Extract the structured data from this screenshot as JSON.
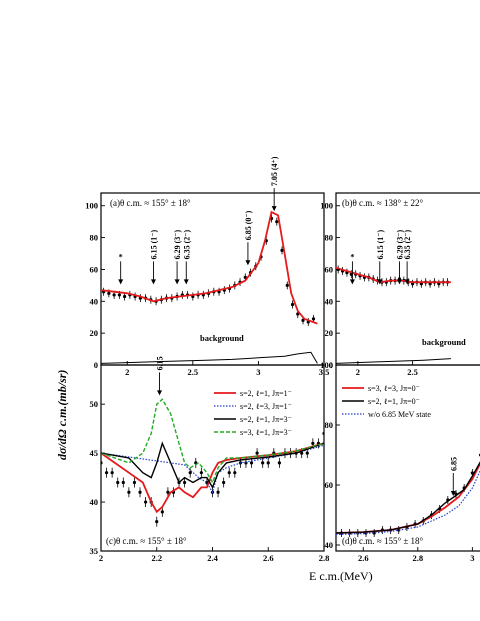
{
  "y_axis_label": "dσ/dΩ c.m.(mb/sr)",
  "x_axis_label": "E c.m.(MeV)",
  "chart_data": [
    {
      "id": "a",
      "type": "line",
      "panel_label": "(a)θ c.m. ≈ 155° ± 18°",
      "xlim": [
        1.8,
        3.5
      ],
      "ylim": [
        0,
        108
      ],
      "xticks": [
        2.0,
        2.5,
        3.0,
        3.5
      ],
      "yticks": [
        0,
        20,
        40,
        60,
        80,
        100
      ],
      "annotations": [
        {
          "label": "*",
          "x": 1.95
        },
        {
          "label": "6.15 (1⁻)",
          "x": 2.2
        },
        {
          "label": "6.29 (3⁻)",
          "x": 2.38
        },
        {
          "label": "6.35 (2⁻)",
          "x": 2.45
        },
        {
          "label": "6.85 (0⁻)",
          "x": 2.92
        },
        {
          "label": "7.05 (4⁺)",
          "x": 3.12
        }
      ],
      "background_label": "background",
      "series": [
        {
          "name": "data",
          "color": "#000000",
          "x": [
            1.82,
            1.86,
            1.9,
            1.94,
            1.98,
            2.02,
            2.06,
            2.1,
            2.14,
            2.18,
            2.22,
            2.26,
            2.3,
            2.34,
            2.38,
            2.42,
            2.46,
            2.5,
            2.54,
            2.58,
            2.62,
            2.66,
            2.7,
            2.74,
            2.78,
            2.82,
            2.86,
            2.9,
            2.94,
            2.98,
            3.02,
            3.06,
            3.1,
            3.14,
            3.18,
            3.22,
            3.26,
            3.3,
            3.34,
            3.38,
            3.42
          ],
          "y": [
            46,
            45,
            44,
            44,
            43,
            44,
            43,
            42,
            42,
            41,
            40,
            41,
            42,
            42,
            43,
            44,
            44,
            43,
            44,
            44,
            45,
            46,
            46,
            47,
            48,
            50,
            52,
            55,
            58,
            62,
            68,
            78,
            92,
            90,
            72,
            50,
            38,
            32,
            28,
            27,
            29
          ]
        },
        {
          "name": "fit",
          "color": "#e41a1c",
          "x": [
            1.8,
            1.9,
            2.0,
            2.1,
            2.2,
            2.3,
            2.4,
            2.5,
            2.6,
            2.7,
            2.8,
            2.9,
            3.0,
            3.05,
            3.1,
            3.15,
            3.2,
            3.25,
            3.3,
            3.35,
            3.45
          ],
          "y": [
            47,
            46,
            45,
            43,
            40,
            42,
            43,
            44,
            45,
            47,
            49,
            53,
            64,
            78,
            96,
            94,
            70,
            45,
            34,
            29,
            26
          ]
        },
        {
          "name": "background",
          "color": "#000000",
          "x": [
            1.8,
            2.0,
            2.2,
            2.4,
            2.6,
            2.8,
            2.9,
            3.0,
            3.1,
            3.2,
            3.3,
            3.4,
            3.45
          ],
          "y": [
            1,
            1.5,
            2,
            2.5,
            3,
            3.5,
            4,
            4.5,
            5,
            5.5,
            7,
            8,
            1
          ]
        }
      ]
    },
    {
      "id": "b",
      "type": "line",
      "panel_label": "(b)θ c.m. ≈ 138° ± 22°",
      "xlim": [
        1.8,
        3.5
      ],
      "ylim": [
        0,
        108
      ],
      "xticks": [
        2.0,
        2.5
      ],
      "yticks": [
        0,
        20,
        40,
        60,
        80,
        100
      ],
      "annotations": [
        {
          "label": "*",
          "x": 1.95
        },
        {
          "label": "6.15 (1⁻)",
          "x": 2.2
        },
        {
          "label": "6.29 (3⁻)",
          "x": 2.38
        },
        {
          "label": "6.35 (2⁻)",
          "x": 2.45
        }
      ],
      "background_label": "background",
      "series": [
        {
          "name": "data",
          "color": "#000000",
          "x": [
            1.82,
            1.86,
            1.9,
            1.94,
            1.98,
            2.02,
            2.06,
            2.1,
            2.14,
            2.18,
            2.22,
            2.26,
            2.3,
            2.34,
            2.38,
            2.42,
            2.46,
            2.5,
            2.54,
            2.58,
            2.62,
            2.66,
            2.7,
            2.74,
            2.78,
            2.82
          ],
          "y": [
            60,
            59,
            58,
            57,
            57,
            56,
            55,
            55,
            54,
            53,
            52,
            52,
            53,
            53,
            54,
            53,
            52,
            51,
            52,
            51,
            52,
            51,
            52,
            51,
            52,
            52
          ]
        },
        {
          "name": "fit",
          "color": "#e41a1c",
          "x": [
            1.8,
            1.9,
            2.0,
            2.1,
            2.2,
            2.3,
            2.4,
            2.5,
            2.6,
            2.7,
            2.85
          ],
          "y": [
            61,
            59,
            57,
            55,
            52,
            53,
            53,
            52,
            52,
            52,
            52
          ]
        },
        {
          "name": "background",
          "color": "#000000",
          "x": [
            1.8,
            2.2,
            2.6,
            2.85
          ],
          "y": [
            1,
            2,
            3,
            4
          ]
        }
      ]
    },
    {
      "id": "c",
      "type": "line",
      "panel_label": "(c)θ c.m. ≈ 155° ± 18°",
      "xlim": [
        2.0,
        2.8
      ],
      "ylim": [
        35,
        54
      ],
      "xticks": [
        2.0,
        2.2,
        2.4,
        2.6,
        2.8
      ],
      "yticks": [
        35,
        40,
        45,
        50
      ],
      "annotations": [
        {
          "label": "6.15",
          "x": 2.21
        }
      ],
      "series": [
        {
          "name": "data",
          "color": "#000000",
          "x": [
            2.0,
            2.02,
            2.04,
            2.06,
            2.08,
            2.1,
            2.12,
            2.14,
            2.16,
            2.18,
            2.2,
            2.22,
            2.24,
            2.26,
            2.28,
            2.3,
            2.32,
            2.34,
            2.36,
            2.38,
            2.4,
            2.42,
            2.44,
            2.46,
            2.48,
            2.5,
            2.52,
            2.54,
            2.56,
            2.58,
            2.6,
            2.62,
            2.64,
            2.66,
            2.68,
            2.7,
            2.72,
            2.74,
            2.76,
            2.78,
            2.8
          ],
          "y": [
            44,
            43,
            43,
            42,
            42,
            41,
            42,
            41,
            40,
            40,
            38,
            39,
            41,
            41,
            42,
            42,
            43,
            44,
            43,
            42,
            41,
            41,
            42,
            43,
            43,
            44,
            44,
            44,
            45,
            44,
            44,
            45,
            44,
            45,
            45,
            45,
            45,
            45,
            46,
            46,
            47
          ]
        },
        {
          "name": "s=2, ℓ=1, Jπ=1⁻",
          "color": "#e41a1c",
          "x": [
            2.0,
            2.05,
            2.1,
            2.15,
            2.18,
            2.2,
            2.22,
            2.25,
            2.28,
            2.3,
            2.33,
            2.36,
            2.38,
            2.4,
            2.42,
            2.45,
            2.5,
            2.6,
            2.7,
            2.8
          ],
          "y": [
            45,
            44,
            43,
            42,
            40,
            39,
            39.5,
            41,
            41.5,
            41,
            40.5,
            41.5,
            41.5,
            43,
            44,
            44.3,
            44.5,
            44.8,
            45.2,
            46
          ]
        },
        {
          "name": "s=2, ℓ=3, Jπ=1⁻",
          "color": "#1f3fd0",
          "x": [
            2.0,
            2.1,
            2.2,
            2.3,
            2.35,
            2.38,
            2.4,
            2.42,
            2.45,
            2.5,
            2.6,
            2.7,
            2.8
          ],
          "y": [
            45,
            44.6,
            44.2,
            43.8,
            42.5,
            42,
            41,
            43,
            43.5,
            44,
            44.5,
            45,
            45.8
          ]
        },
        {
          "name": "s=2, ℓ=1, Jπ=3⁻",
          "color": "#000000",
          "x": [
            2.0,
            2.1,
            2.15,
            2.18,
            2.2,
            2.22,
            2.25,
            2.28,
            2.3,
            2.33,
            2.36,
            2.38,
            2.4,
            2.42,
            2.45,
            2.5,
            2.6,
            2.7,
            2.8
          ],
          "y": [
            45,
            44.5,
            43,
            42.5,
            44,
            46,
            44,
            42,
            42.5,
            42,
            42.5,
            42.5,
            41.5,
            43,
            44,
            44.3,
            44.6,
            45,
            46
          ]
        },
        {
          "name": "s=3, ℓ=1, Jπ=3⁻",
          "color": "#22aa22",
          "x": [
            2.0,
            2.05,
            2.1,
            2.15,
            2.18,
            2.2,
            2.22,
            2.25,
            2.28,
            2.3,
            2.32,
            2.35,
            2.38,
            2.4,
            2.42,
            2.45,
            2.5,
            2.6,
            2.7,
            2.8
          ],
          "y": [
            45,
            44.5,
            44,
            45,
            47,
            50,
            50.5,
            49,
            46,
            44,
            43.5,
            44,
            43,
            42,
            43.5,
            44.5,
            44.5,
            44.8,
            45.2,
            46
          ]
        }
      ]
    },
    {
      "id": "d",
      "type": "line",
      "panel_label": "(d)θ c.m. ≈ 155° ± 18°",
      "xlim": [
        2.5,
        3.05
      ],
      "ylim": [
        38,
        100
      ],
      "xticks": [
        2.6,
        2.8,
        3.0
      ],
      "yticks": [
        40,
        60,
        80,
        100
      ],
      "annotations": [
        {
          "label": "6.85",
          "x": 2.93
        }
      ],
      "series": [
        {
          "name": "data",
          "color": "#000000",
          "x": [
            2.52,
            2.55,
            2.58,
            2.61,
            2.64,
            2.67,
            2.7,
            2.73,
            2.76,
            2.79,
            2.82,
            2.85,
            2.88,
            2.91,
            2.94,
            2.97,
            3.0,
            3.03
          ],
          "y": [
            44,
            44,
            44,
            44,
            44,
            45,
            45,
            45,
            46,
            47,
            48,
            50,
            52,
            55,
            57,
            59,
            64,
            70
          ]
        },
        {
          "name": "s=3, ℓ=3, Jπ=0⁻",
          "color": "#e41a1c",
          "x": [
            2.5,
            2.6,
            2.7,
            2.8,
            2.85,
            2.9,
            2.95,
            3.0,
            3.05
          ],
          "y": [
            44,
            44.3,
            45,
            47,
            49.5,
            52.5,
            56,
            62,
            71
          ]
        },
        {
          "name": "s=2, ℓ=1, Jπ=0⁻",
          "color": "#000000",
          "x": [
            2.5,
            2.6,
            2.7,
            2.8,
            2.85,
            2.9,
            2.94,
            2.97,
            3.0,
            3.05
          ],
          "y": [
            44,
            44.3,
            45,
            47,
            50,
            54,
            56.5,
            58.5,
            63,
            71
          ]
        },
        {
          "name": "w/o 6.85 MeV state",
          "color": "#1f3fd0",
          "x": [
            2.5,
            2.6,
            2.7,
            2.8,
            2.85,
            2.9,
            2.95,
            3.0,
            3.05
          ],
          "y": [
            43.5,
            43.8,
            44.5,
            46,
            48,
            50,
            53,
            59,
            69
          ]
        }
      ]
    }
  ]
}
